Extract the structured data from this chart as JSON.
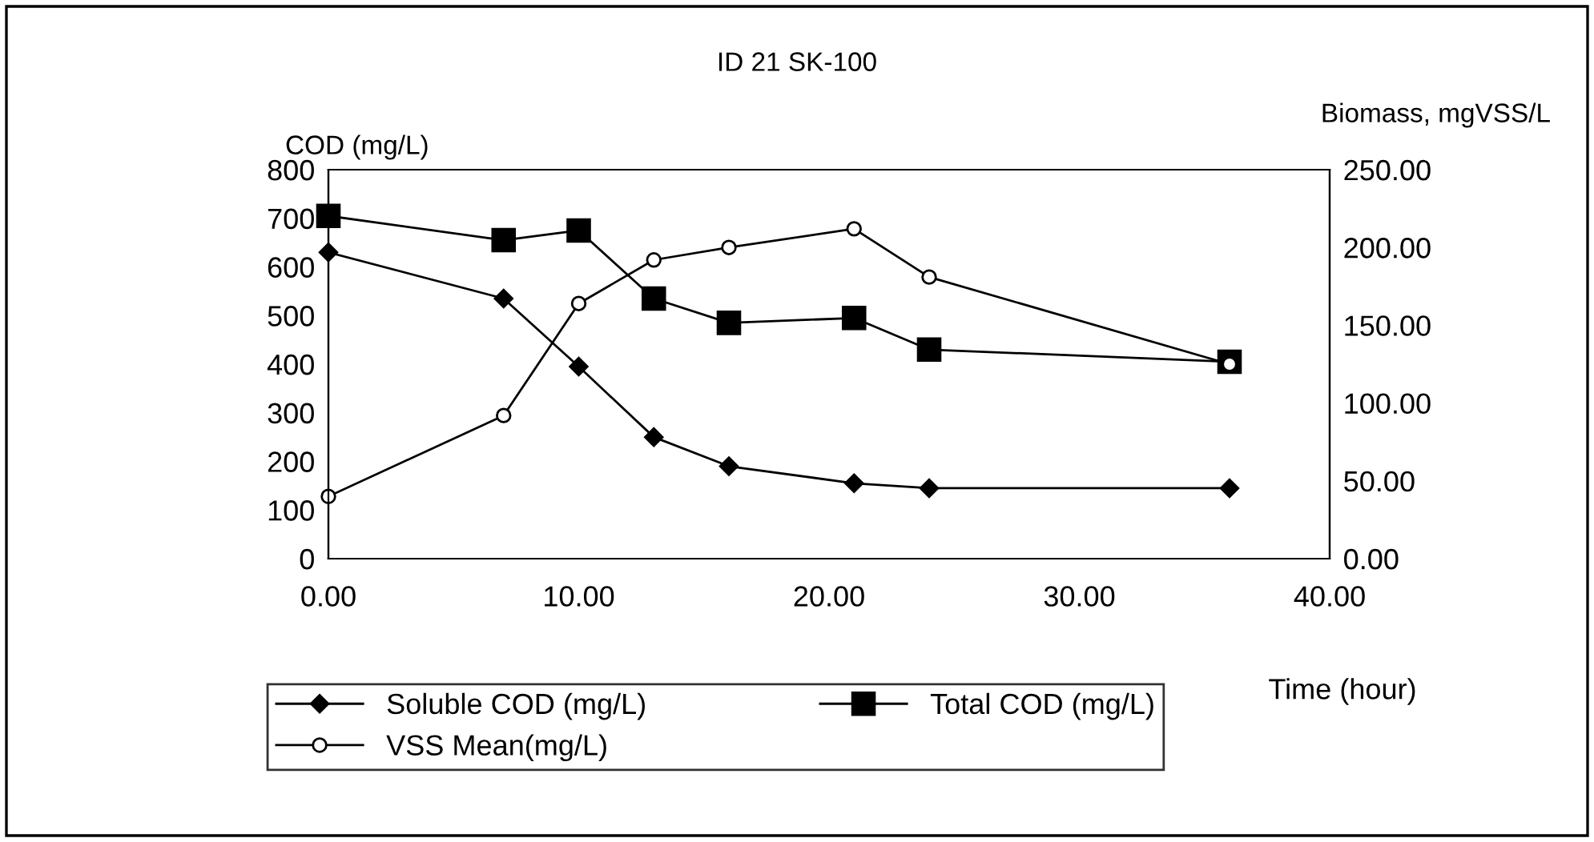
{
  "chart_data": {
    "type": "line",
    "title": "ID 21 SK-100",
    "ylabel": "COD (mg/L)",
    "y2label": "Biomass, mgVSS/L",
    "xlabel": "Time (hour)",
    "x": [
      0,
      7,
      10,
      13,
      16,
      21,
      24,
      36
    ],
    "series": [
      {
        "name": "Soluble COD (mg/L)",
        "color": "#000000",
        "marker": "diamond",
        "values": [
          630,
          535,
          395,
          250,
          190,
          155,
          145,
          145
        ]
      },
      {
        "name": "Total COD (mg/L)",
        "color": "#000000",
        "marker": "square",
        "values": [
          705,
          655,
          675,
          535,
          485,
          495,
          430,
          405
        ]
      },
      {
        "name": "VSS Mean(mg/L)",
        "color": "#000000",
        "marker": "circle",
        "axis": "y2",
        "values": [
          40,
          92,
          164,
          192,
          200,
          212,
          181,
          125
        ]
      }
    ],
    "xlim": [
      0,
      40
    ],
    "xticks": [
      {
        "value": 0,
        "label": "0.00"
      },
      {
        "value": 10,
        "label": "10.00"
      },
      {
        "value": 20,
        "label": "20.00"
      },
      {
        "value": 30,
        "label": "30.00"
      },
      {
        "value": 40,
        "label": "40.00"
      }
    ],
    "ylim": [
      0,
      800
    ],
    "yticks": [
      0,
      100,
      200,
      300,
      400,
      500,
      600,
      700,
      800
    ],
    "y2lim": [
      0,
      250
    ],
    "y2ticks": [
      {
        "value": 0,
        "label": "0.00"
      },
      {
        "value": 50,
        "label": "50.00"
      },
      {
        "value": 100,
        "label": "100.00"
      },
      {
        "value": 150,
        "label": "150.00"
      },
      {
        "value": 200,
        "label": "200.00"
      },
      {
        "value": 250,
        "label": "250.00"
      }
    ],
    "grid": false,
    "legend": "bottom",
    "line_style": "solid"
  }
}
